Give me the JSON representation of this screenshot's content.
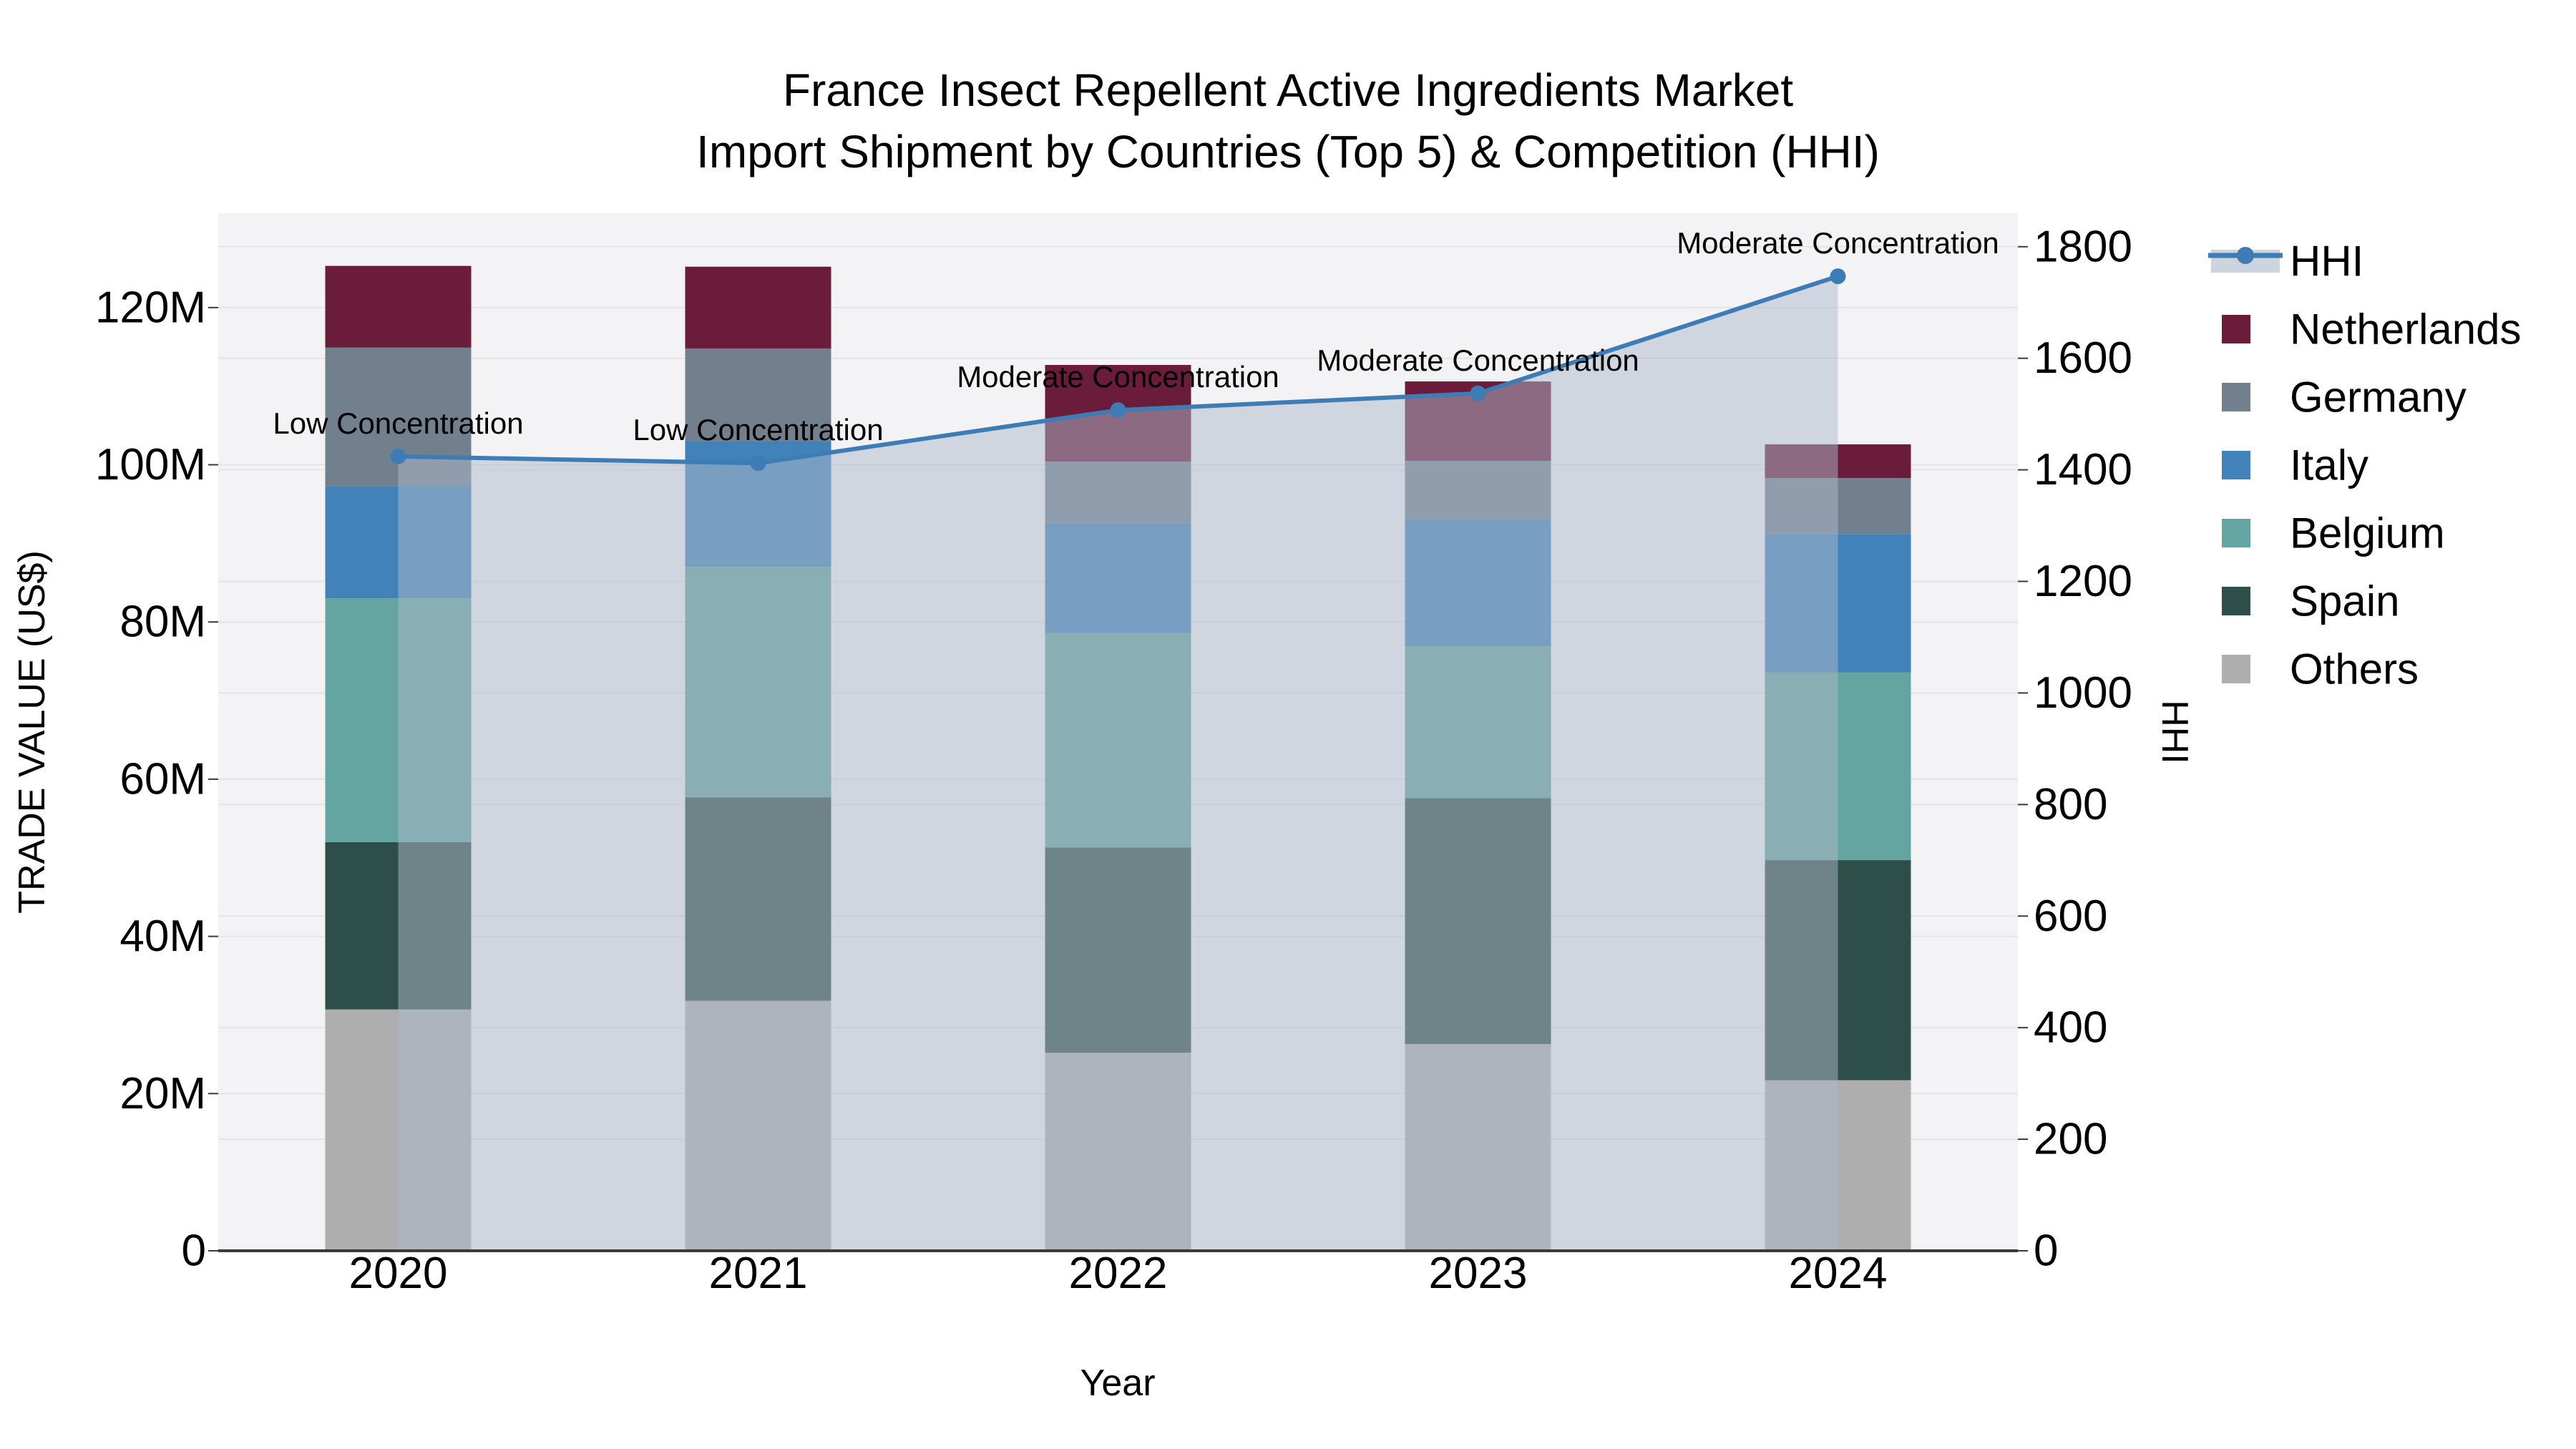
{
  "title": {
    "line1": "France Insect Repellent Active Ingredients Market",
    "line2": "Import Shipment by Countries (Top 5) & Competition (HHI)"
  },
  "colors": {
    "plot_background": "#f3f3f5",
    "gridline": "#e4e4e8",
    "axis_line": "#3a3a3a",
    "text": "#000000",
    "hhi_line": "#3d7cb4",
    "hhi_area_fill": "rgba(174,186,202,0.5)",
    "hhi_legend_band": "#cdd4de"
  },
  "chart_data": {
    "type": "combo_stacked_bar_line",
    "description": "Stacked bars = import trade value by country (left axis, US$). Line with markers + translucent area fill = HHI competition index (right axis).",
    "categories": [
      "2020",
      "2021",
      "2022",
      "2023",
      "2024"
    ],
    "unit": "million US$",
    "series": [
      {
        "name": "Netherlands",
        "color": "#6b1c3a",
        "values": [
          10.4,
          10.4,
          12.3,
          10.1,
          4.3
        ]
      },
      {
        "name": "Germany",
        "color": "#72808e",
        "values": [
          17.6,
          11.8,
          7.8,
          7.5,
          7.1
        ]
      },
      {
        "name": "Italy",
        "color": "#4282ba",
        "values": [
          14.3,
          16.0,
          14.0,
          16.1,
          17.6
        ]
      },
      {
        "name": "Belgium",
        "color": "#64a4a1",
        "values": [
          31.0,
          29.3,
          27.3,
          19.3,
          23.9
        ]
      },
      {
        "name": "Spain",
        "color": "#2e4f49",
        "values": [
          21.3,
          25.9,
          26.1,
          31.3,
          28.0
        ]
      },
      {
        "name": "Others",
        "color": "#aeaeae",
        "values": [
          30.7,
          31.8,
          25.2,
          26.3,
          21.7
        ]
      }
    ],
    "stack_order_bottom_to_top": [
      "Others",
      "Spain",
      "Belgium",
      "Italy",
      "Germany",
      "Netherlands"
    ],
    "stacked_totals": [
      125.3,
      125.2,
      112.7,
      110.6,
      102.6
    ],
    "hhi": {
      "name": "HHI",
      "values": [
        1424,
        1412,
        1507,
        1537,
        1747
      ],
      "point_annotations": [
        "Low Concentration",
        "Low Concentration",
        "Moderate Concentration",
        "Moderate Concentration",
        "Moderate Concentration"
      ]
    },
    "axes": {
      "x": {
        "title": "Year",
        "tick_labels": [
          "2020",
          "2021",
          "2022",
          "2023",
          "2024"
        ]
      },
      "y_left": {
        "title": "TRADE VALUE (US$)",
        "tick_labels": [
          "0",
          "20M",
          "40M",
          "60M",
          "80M",
          "100M",
          "120M"
        ],
        "tick_values": [
          0,
          20,
          40,
          60,
          80,
          100,
          120
        ],
        "range": [
          0,
          132
        ]
      },
      "y_right": {
        "title": "HHI",
        "tick_labels": [
          "0",
          "200",
          "400",
          "600",
          "800",
          "1000",
          "1200",
          "1400",
          "1600",
          "1800"
        ],
        "tick_values": [
          0,
          200,
          400,
          600,
          800,
          1000,
          1200,
          1400,
          1600,
          1800
        ],
        "range": [
          0,
          1860
        ]
      }
    },
    "legend_position": "right",
    "grid": true
  },
  "legend": {
    "entries": [
      "HHI",
      "Netherlands",
      "Germany",
      "Italy",
      "Belgium",
      "Spain",
      "Others"
    ]
  }
}
